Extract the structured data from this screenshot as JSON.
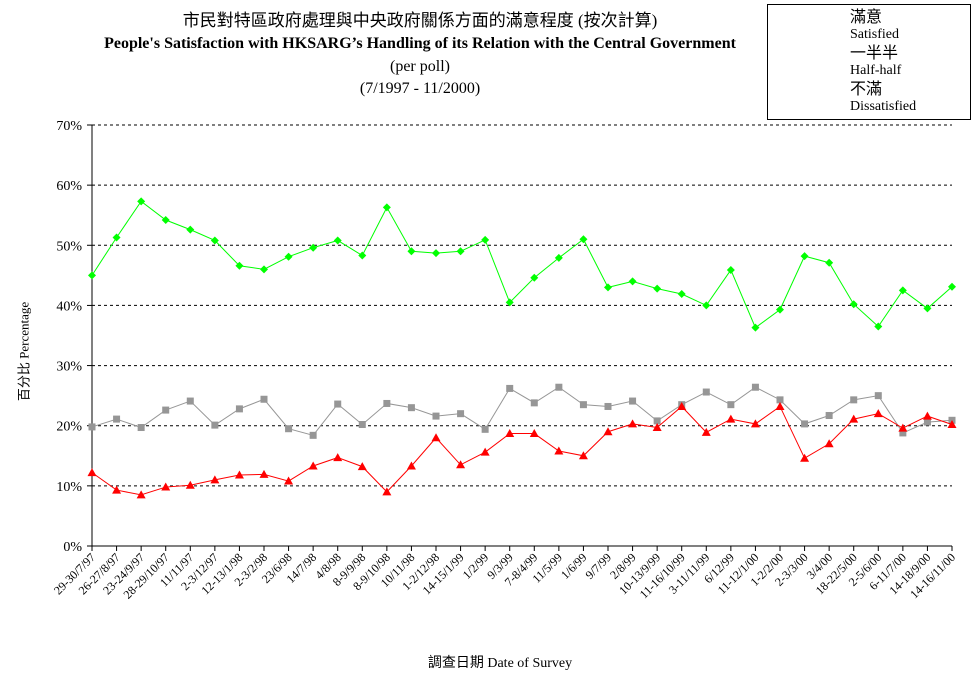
{
  "title": {
    "line_zh": "市民對特區政府處理與中央政府關係方面的滿意程度 (按次計算)",
    "line_en": "People's Satisfaction with HKSARG’s Handling of its Relation with the Central Government",
    "line_sub": "(per poll)",
    "line_range": "(7/1997 - 11/2000)"
  },
  "axis": {
    "ylabel": "百分比 Percentage",
    "xlabel": "調查日期 Date of Survey"
  },
  "colors": {
    "satisfied": "#00ff00",
    "half": "#969696",
    "dissatisfied": "#ff0000",
    "grid": "#000000"
  },
  "legend": [
    {
      "zh": "滿意",
      "en": "Satisfied",
      "marker": "diamond",
      "color": "#00ff00"
    },
    {
      "zh": "一半半",
      "en": "Half-half",
      "marker": "square",
      "color": "#969696"
    },
    {
      "zh": "不滿",
      "en": "Dissatisfied",
      "marker": "triangle",
      "color": "#ff0000"
    }
  ],
  "chart_data": {
    "type": "line",
    "title": "People's Satisfaction with HKSARG’s Handling of its Relation with the Central Government",
    "xlabel": "調查日期 Date of Survey",
    "ylabel": "百分比 Percentage",
    "ylim": [
      0,
      70
    ],
    "yticks": [
      "0%",
      "10%",
      "20%",
      "30%",
      "40%",
      "50%",
      "60%",
      "70%"
    ],
    "grid": true,
    "legend_position": "top-right",
    "categories": [
      "29-30/7/97",
      "26-27/8/97",
      "23-24/9/97",
      "28-29/10/97",
      "11/11/97",
      "2-3/12/97",
      "12-13/1/98",
      "2-3/2/98",
      "23/6/98",
      "14/7/98",
      "4/8/98",
      "8-9/9/98",
      "8-9/10/98",
      "10/11/98",
      "1-2/12/98",
      "14-15/1/99",
      "1/2/99",
      "9/3/99",
      "7-8/4/99",
      "11/5/99",
      "1/6/99",
      "9/7/99",
      "2/8/99",
      "10-13/9/99",
      "11-16/10/99",
      "3-11/11/99",
      "6/12/99",
      "11-12/1/00",
      "1-2/2/00",
      "2-3/3/00",
      "3/4/00",
      "18-22/5/00",
      "2-5/6/00",
      "6-11/7/00",
      "14-18/9/00",
      "14-16/11/00"
    ],
    "series": [
      {
        "name": "Satisfied",
        "values": [
          45,
          51.3,
          57.3,
          54.2,
          52.6,
          50.8,
          46.6,
          46.0,
          48.1,
          49.6,
          50.8,
          48.3,
          56.3,
          49.0,
          48.7,
          49.0,
          50.9,
          40.5,
          44.6,
          47.9,
          51.0,
          43.0,
          44.0,
          42.8,
          41.9,
          40.0,
          45.9,
          36.3,
          39.3,
          48.2,
          47.1,
          40.2,
          36.5,
          42.5,
          39.5,
          43.1
        ]
      },
      {
        "name": "Half-half",
        "values": [
          19.8,
          21.1,
          19.7,
          22.6,
          24.1,
          20.1,
          22.8,
          24.4,
          19.5,
          18.4,
          23.6,
          20.2,
          23.7,
          23.0,
          21.6,
          22.0,
          19.4,
          26.2,
          23.8,
          26.4,
          23.5,
          23.2,
          24.1,
          20.8,
          23.5,
          25.6,
          23.5,
          26.4,
          24.3,
          20.3,
          21.7,
          24.3,
          25.0,
          18.8,
          20.6,
          20.9
        ]
      },
      {
        "name": "Dissatisfied",
        "values": [
          12.2,
          9.3,
          8.5,
          9.8,
          10.1,
          11.0,
          11.8,
          11.9,
          10.8,
          13.3,
          14.7,
          13.2,
          9.0,
          13.3,
          18.0,
          13.5,
          15.6,
          18.7,
          18.7,
          15.8,
          15.0,
          19.0,
          20.3,
          19.7,
          23.2,
          18.9,
          21.1,
          20.3,
          23.2,
          14.6,
          17.0,
          21.1,
          22.0,
          19.6,
          21.6,
          20.2
        ]
      }
    ]
  }
}
